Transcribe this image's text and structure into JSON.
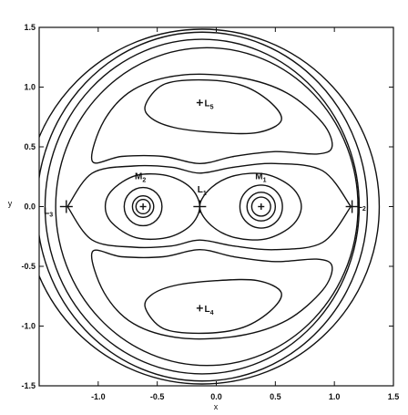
{
  "chart_data": {
    "type": "contour",
    "xlabel": "x",
    "ylabel": "y",
    "xlim": [
      -1.5,
      1.5
    ],
    "ylim": [
      -1.5,
      1.5
    ],
    "xticks": [
      "-1.0",
      "-0.5",
      "0.0",
      "0.5",
      "1.0",
      "1.5"
    ],
    "yticks": [
      "1.5",
      "1.0",
      "0.5",
      "0.0",
      "-0.5",
      "-1.0",
      "-1.5"
    ],
    "points": [
      {
        "name": "M",
        "sub": "1",
        "x": 0.38,
        "y": 0.0,
        "marker": "plus",
        "label_dx": -0.05,
        "label_dy": 0.23
      },
      {
        "name": "M",
        "sub": "2",
        "x": -0.62,
        "y": 0.0,
        "marker": "plus",
        "label_dx": -0.07,
        "label_dy": 0.23
      },
      {
        "name": "L",
        "sub": "1",
        "x": -0.14,
        "y": 0.0,
        "marker": "star",
        "label_dx": -0.02,
        "label_dy": 0.12
      },
      {
        "name": "L",
        "sub": "2",
        "x": 1.15,
        "y": 0.0,
        "marker": "star",
        "label_dx": 0.04,
        "label_dy": -0.01
      },
      {
        "name": "L",
        "sub": "3",
        "x": -1.27,
        "y": 0.0,
        "marker": "star",
        "label_dx": -0.19,
        "label_dy": -0.06
      },
      {
        "name": "L",
        "sub": "4",
        "x": -0.14,
        "y": -0.85,
        "marker": "plus",
        "label_dx": 0.04,
        "label_dy": -0.03
      },
      {
        "name": "L",
        "sub": "5",
        "x": -0.14,
        "y": 0.87,
        "marker": "plus",
        "label_dx": 0.04,
        "label_dy": -0.03
      }
    ],
    "contours": [
      {
        "name": "outer-circle",
        "type": "circle",
        "cx": -0.12,
        "cy": 0.0,
        "r": 1.5
      },
      {
        "name": "outer-loop",
        "type": "ellipse",
        "cx": -0.12,
        "cy": 0.0,
        "rx": 1.4,
        "ry": 1.46
      },
      {
        "name": "loop-through-L3",
        "type": "ellipse",
        "cx": -0.12,
        "cy": 0.0,
        "rx": 1.33,
        "ry": 1.4
      },
      {
        "name": "loop-through-L2",
        "type": "ellipse",
        "cx": -0.08,
        "cy": 0.0,
        "rx": 1.28,
        "ry": 1.33
      },
      {
        "name": "horseshoe-outer-top",
        "type": "path",
        "pts": [
          [
            -1.26,
            0.0
          ],
          [
            -1.05,
            0.28
          ],
          [
            -0.7,
            0.34
          ],
          [
            -0.38,
            0.33
          ],
          [
            -0.14,
            0.28
          ],
          [
            0.15,
            0.33
          ],
          [
            0.5,
            0.36
          ],
          [
            0.9,
            0.3
          ],
          [
            1.14,
            0.0
          ]
        ]
      },
      {
        "name": "horseshoe-outer-bottom",
        "type": "path",
        "pts": [
          [
            -1.26,
            0.0
          ],
          [
            -1.05,
            -0.28
          ],
          [
            -0.7,
            -0.34
          ],
          [
            -0.38,
            -0.33
          ],
          [
            -0.14,
            -0.28
          ],
          [
            0.15,
            -0.33
          ],
          [
            0.5,
            -0.36
          ],
          [
            0.9,
            -0.3
          ],
          [
            1.14,
            0.0
          ]
        ]
      },
      {
        "name": "tadpole-top-outer",
        "type": "path",
        "closed": true,
        "pts": [
          [
            -1.05,
            0.38
          ],
          [
            -0.95,
            0.72
          ],
          [
            -0.7,
            0.98
          ],
          [
            -0.3,
            1.1
          ],
          [
            0.2,
            1.08
          ],
          [
            0.6,
            0.95
          ],
          [
            0.9,
            0.7
          ],
          [
            0.98,
            0.5
          ],
          [
            0.85,
            0.44
          ],
          [
            0.5,
            0.46
          ],
          [
            0.15,
            0.42
          ],
          [
            -0.14,
            0.36
          ],
          [
            -0.45,
            0.42
          ],
          [
            -0.8,
            0.42
          ]
        ]
      },
      {
        "name": "tadpole-top-inner",
        "type": "path",
        "closed": true,
        "pts": [
          [
            -0.6,
            0.85
          ],
          [
            -0.45,
            1.02
          ],
          [
            -0.15,
            1.06
          ],
          [
            0.2,
            1.02
          ],
          [
            0.45,
            0.88
          ],
          [
            0.55,
            0.72
          ],
          [
            0.35,
            0.62
          ],
          [
            0.0,
            0.62
          ],
          [
            -0.35,
            0.66
          ],
          [
            -0.55,
            0.74
          ]
        ]
      },
      {
        "name": "tadpole-bottom-outer",
        "type": "path",
        "closed": true,
        "pts": [
          [
            -1.05,
            -0.38
          ],
          [
            -0.95,
            -0.72
          ],
          [
            -0.7,
            -0.98
          ],
          [
            -0.3,
            -1.1
          ],
          [
            0.2,
            -1.08
          ],
          [
            0.6,
            -0.95
          ],
          [
            0.9,
            -0.7
          ],
          [
            0.98,
            -0.5
          ],
          [
            0.85,
            -0.44
          ],
          [
            0.5,
            -0.46
          ],
          [
            0.15,
            -0.42
          ],
          [
            -0.14,
            -0.36
          ],
          [
            -0.45,
            -0.42
          ],
          [
            -0.8,
            -0.42
          ]
        ]
      },
      {
        "name": "tadpole-bottom-inner",
        "type": "path",
        "closed": true,
        "pts": [
          [
            -0.6,
            -0.85
          ],
          [
            -0.45,
            -1.02
          ],
          [
            -0.15,
            -1.06
          ],
          [
            0.2,
            -1.02
          ],
          [
            0.45,
            -0.88
          ],
          [
            0.55,
            -0.72
          ],
          [
            0.35,
            -0.62
          ],
          [
            0.0,
            -0.62
          ],
          [
            -0.35,
            -0.66
          ],
          [
            -0.55,
            -0.74
          ]
        ]
      },
      {
        "name": "figure-eight-lobe-m2",
        "type": "path",
        "closed": true,
        "pts": [
          [
            -0.14,
            0.0
          ],
          [
            -0.22,
            0.16
          ],
          [
            -0.42,
            0.26
          ],
          [
            -0.68,
            0.26
          ],
          [
            -0.88,
            0.14
          ],
          [
            -0.94,
            0.0
          ],
          [
            -0.88,
            -0.14
          ],
          [
            -0.68,
            -0.26
          ],
          [
            -0.42,
            -0.26
          ],
          [
            -0.22,
            -0.16
          ]
        ]
      },
      {
        "name": "figure-eight-lobe-m1",
        "type": "path",
        "closed": true,
        "pts": [
          [
            -0.14,
            0.0
          ],
          [
            -0.04,
            0.16
          ],
          [
            0.16,
            0.26
          ],
          [
            0.42,
            0.27
          ],
          [
            0.64,
            0.16
          ],
          [
            0.72,
            0.0
          ],
          [
            0.64,
            -0.16
          ],
          [
            0.42,
            -0.27
          ],
          [
            0.16,
            -0.26
          ],
          [
            -0.04,
            -0.16
          ]
        ]
      },
      {
        "name": "m2-ring-1",
        "type": "ellipse",
        "cx": -0.62,
        "cy": 0.0,
        "rx": 0.16,
        "ry": 0.16
      },
      {
        "name": "m2-ring-2",
        "type": "ellipse",
        "cx": -0.62,
        "cy": 0.0,
        "rx": 0.09,
        "ry": 0.09
      },
      {
        "name": "m2-ring-3",
        "type": "ellipse",
        "cx": -0.62,
        "cy": 0.0,
        "rx": 0.06,
        "ry": 0.06
      },
      {
        "name": "m1-ring-1",
        "type": "ellipse",
        "cx": 0.38,
        "cy": 0.0,
        "rx": 0.18,
        "ry": 0.18
      },
      {
        "name": "m1-ring-2",
        "type": "ellipse",
        "cx": 0.38,
        "cy": 0.0,
        "rx": 0.12,
        "ry": 0.12
      },
      {
        "name": "m1-ring-3",
        "type": "ellipse",
        "cx": 0.38,
        "cy": 0.0,
        "rx": 0.08,
        "ry": 0.08
      }
    ]
  }
}
